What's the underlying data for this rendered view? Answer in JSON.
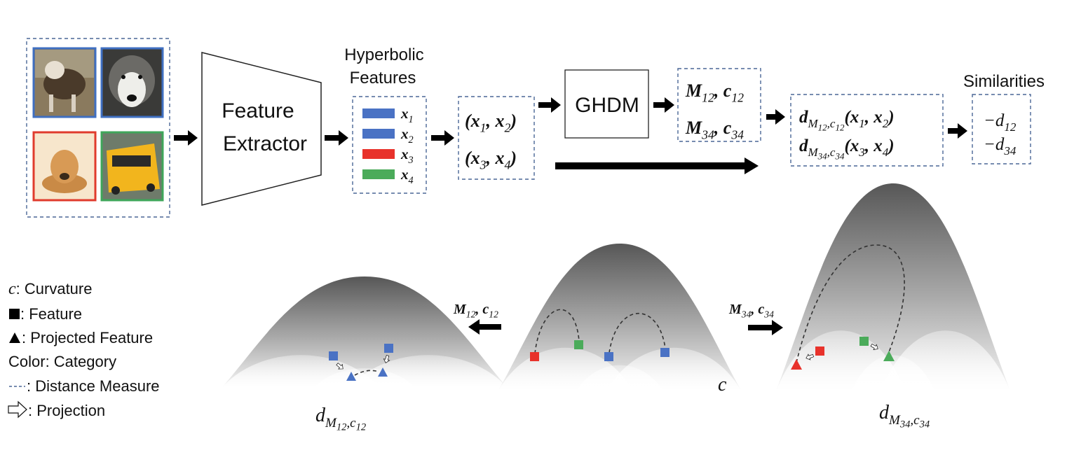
{
  "feature_extractor": {
    "lines": [
      "Feature",
      "Extractor"
    ]
  },
  "hyperbolic_features": {
    "title": [
      "Hyperbolic",
      "Features"
    ],
    "items": [
      {
        "label": [
          {
            "base": "x"
          },
          {
            "sub": "1"
          }
        ],
        "color": "#4a72c4"
      },
      {
        "label": [
          {
            "base": "x"
          },
          {
            "sub": "2"
          }
        ],
        "color": "#4a72c4"
      },
      {
        "label": [
          {
            "base": "x"
          },
          {
            "sub": "3"
          }
        ],
        "color": "#e8322b"
      },
      {
        "label": [
          {
            "base": "x"
          },
          {
            "sub": "4"
          }
        ],
        "color": "#4bab5a"
      }
    ]
  },
  "pairs": [
    [
      {
        "base": "(x"
      },
      {
        "sub": "1"
      },
      {
        "base": ", x"
      },
      {
        "sub": "2"
      },
      {
        "base": ")"
      }
    ],
    [
      {
        "base": "(x"
      },
      {
        "sub": "3"
      },
      {
        "base": ", x"
      },
      {
        "sub": "4"
      },
      {
        "base": ")"
      }
    ]
  ],
  "ghdm": "GHDM",
  "metrics": [
    [
      {
        "base": "M"
      },
      {
        "sub": "12"
      },
      {
        "base": ", c"
      },
      {
        "sub": "12"
      }
    ],
    [
      {
        "base": "M"
      },
      {
        "sub": "34"
      },
      {
        "base": ", c"
      },
      {
        "sub": "34"
      }
    ]
  ],
  "distances": [
    [
      {
        "base": "d"
      },
      {
        "sub": "M"
      },
      {
        "subsub": "12"
      },
      {
        "sub": ",c"
      },
      {
        "subsub": "12"
      },
      {
        "base": "(x"
      },
      {
        "sub": "1"
      },
      {
        "base": ", x"
      },
      {
        "sub": "2"
      },
      {
        "base": ")"
      }
    ],
    [
      {
        "base": "d"
      },
      {
        "sub": "M"
      },
      {
        "subsub": "34"
      },
      {
        "sub": ",c"
      },
      {
        "subsub": "34"
      },
      {
        "base": "(x"
      },
      {
        "sub": "3"
      },
      {
        "base": ", x"
      },
      {
        "sub": "4"
      },
      {
        "base": ")"
      }
    ]
  ],
  "similarities": {
    "title": "Similarities",
    "items": [
      [
        {
          "base": "−d"
        },
        {
          "sub": "12"
        }
      ],
      [
        {
          "base": "−d"
        },
        {
          "sub": "34"
        }
      ]
    ]
  },
  "legend": [
    {
      "symbol": "c",
      "text": ": Curvature"
    },
    {
      "text": ": Feature"
    },
    {
      "text": ": Projected Feature"
    },
    {
      "text": "Color: Category"
    },
    {
      "text": ": Distance Measure"
    },
    {
      "text": ": Projection"
    }
  ],
  "manifolds": {
    "left_label": [
      {
        "base": "d"
      },
      {
        "sub": "M"
      },
      {
        "subsub": "12"
      },
      {
        "sub": ",c"
      },
      {
        "subsub": "12"
      }
    ],
    "left_transform": [
      {
        "base": "M"
      },
      {
        "sub": "12"
      },
      {
        "base": ", c"
      },
      {
        "sub": "12"
      }
    ],
    "center_label": "c",
    "right_transform": [
      {
        "base": "M"
      },
      {
        "sub": "34"
      },
      {
        "base": ", c"
      },
      {
        "sub": "34"
      }
    ],
    "right_label": [
      {
        "base": "d"
      },
      {
        "sub": "M"
      },
      {
        "subsub": "34"
      },
      {
        "sub": ",c"
      },
      {
        "subsub": "34"
      }
    ]
  }
}
